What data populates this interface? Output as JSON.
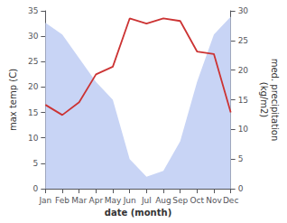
{
  "chart_data": {
    "type": "line",
    "categories": [
      "Jan",
      "Feb",
      "Mar",
      "Apr",
      "May",
      "Jun",
      "Jul",
      "Aug",
      "Sep",
      "Oct",
      "Nov",
      "Dec"
    ],
    "series": [
      {
        "type": "area",
        "color": "#c8d4f5",
        "axis": "y2",
        "values": [
          28.0,
          26.0,
          22.0,
          18.0,
          15.0,
          5.0,
          2.0,
          3.0,
          8.0,
          18.0,
          26.0,
          29.0
        ]
      },
      {
        "type": "line",
        "color": "#cc3333",
        "values": [
          16.5,
          14.5,
          17.0,
          22.5,
          24.0,
          33.5,
          32.5,
          33.5,
          33.0,
          27.0,
          26.5,
          15.0
        ]
      }
    ],
    "xlabel": "date (month)",
    "ylabel": "max temp (C)",
    "y2label": "med. precipitation\n(kg/m2)",
    "ylim": [
      0,
      35
    ],
    "yticks": [
      0,
      5,
      10,
      15,
      20,
      25,
      30,
      35
    ],
    "y2lim": [
      0,
      30
    ],
    "y2ticks": [
      0,
      5,
      10,
      15,
      20,
      25,
      30
    ],
    "grid": false
  }
}
